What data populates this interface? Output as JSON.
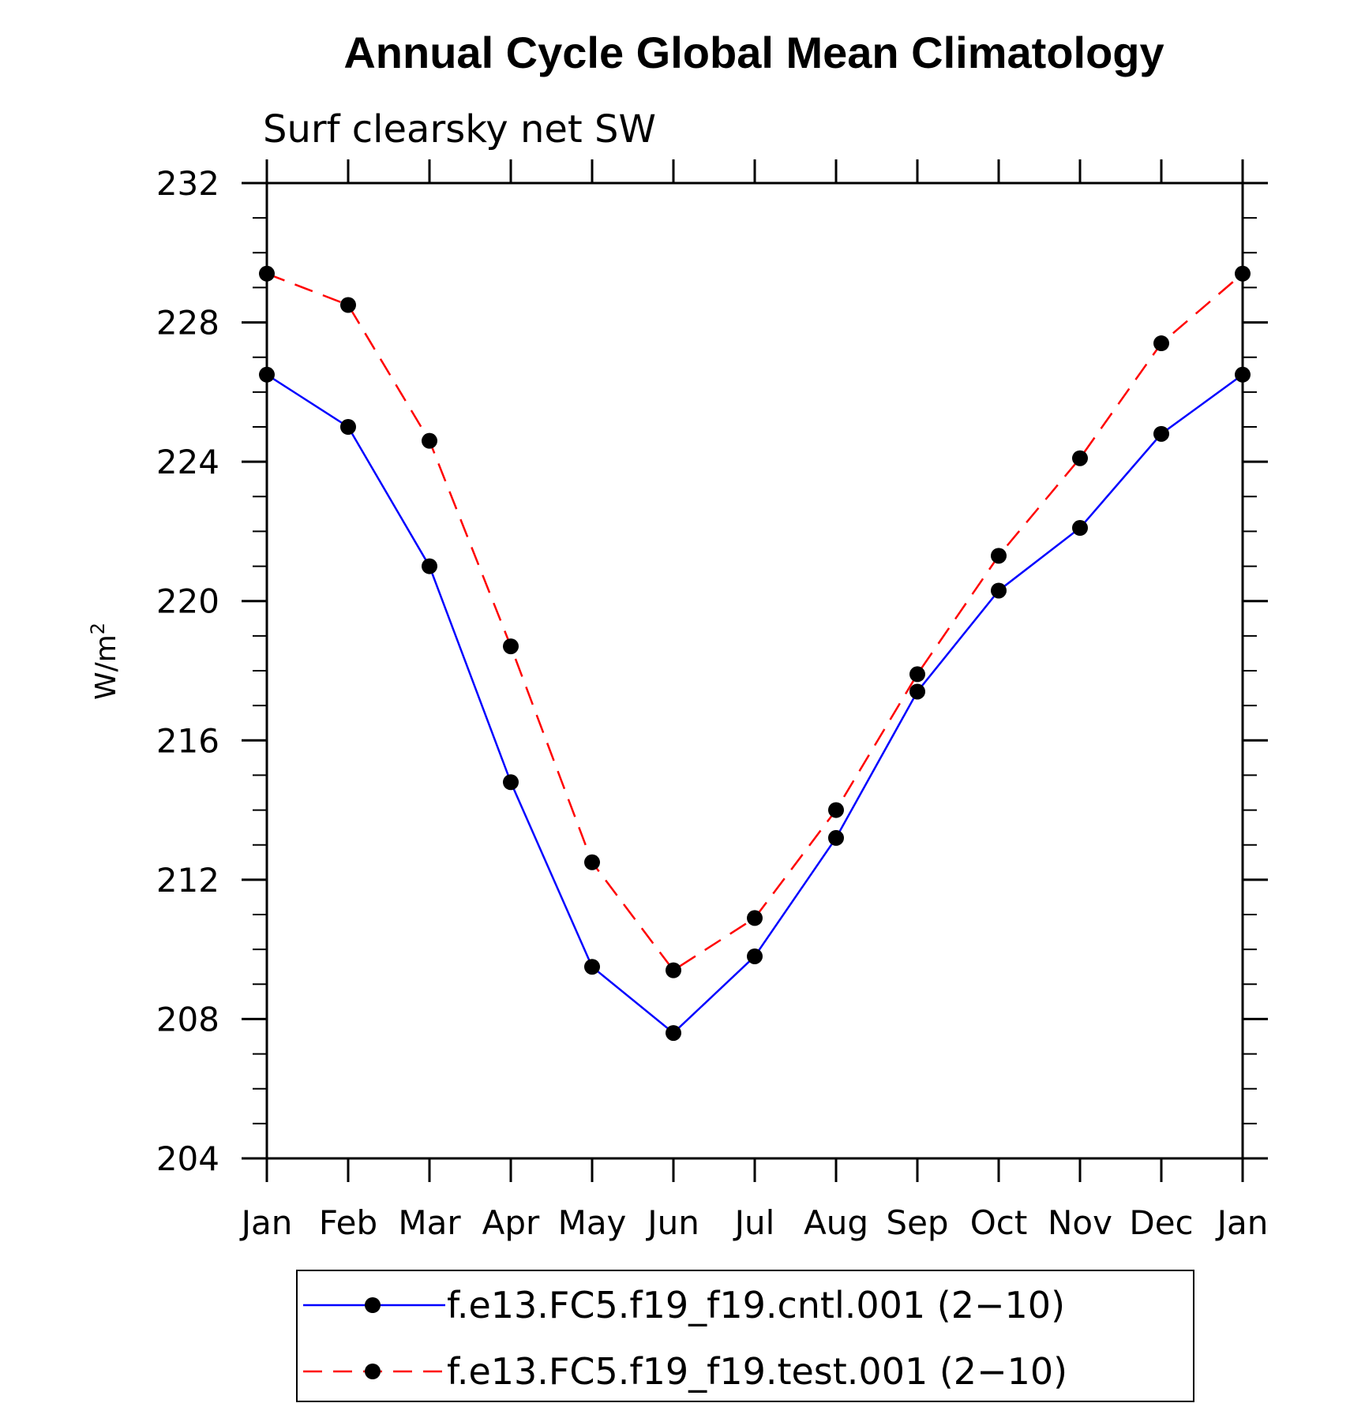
{
  "chart_data": {
    "type": "line",
    "title": "Annual Cycle Global Mean Climatology",
    "subtitle": "Surf clearsky net SW",
    "ylabel": "W/m",
    "ylabel_sup": "2",
    "xlabel": "",
    "categories": [
      "Jan",
      "Feb",
      "Mar",
      "Apr",
      "May",
      "Jun",
      "Jul",
      "Aug",
      "Sep",
      "Oct",
      "Nov",
      "Dec",
      "Jan"
    ],
    "ylim": [
      204,
      232
    ],
    "yticks": [
      204,
      208,
      212,
      216,
      220,
      224,
      228,
      232
    ],
    "yticks_labels": [
      "204",
      "208",
      "212",
      "216",
      "220",
      "224",
      "228",
      "232"
    ],
    "legend_position": "bottom",
    "grid": false,
    "series": [
      {
        "name": "f.e13.FC5.f19_f19.cntl.001 (2−10)",
        "color": "#0000ff",
        "dash": "solid",
        "values": [
          226.5,
          225.0,
          221.0,
          214.8,
          209.5,
          207.6,
          209.8,
          213.2,
          217.4,
          220.3,
          222.1,
          224.8,
          226.5
        ]
      },
      {
        "name": "f.e13.FC5.f19_f19.test.001 (2−10)",
        "color": "#ff0000",
        "dash": "dashed",
        "values": [
          229.4,
          228.5,
          224.6,
          218.7,
          212.5,
          209.4,
          210.9,
          214.0,
          217.9,
          221.3,
          224.1,
          227.4,
          229.4
        ]
      }
    ],
    "marker_color": "#000000"
  }
}
